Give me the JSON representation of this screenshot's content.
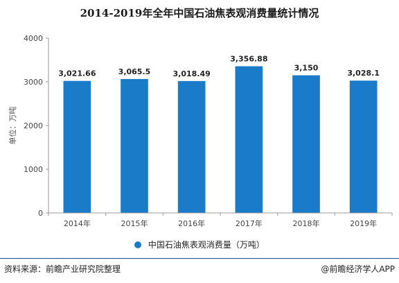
{
  "colors": {
    "bar": "#1a7cc9",
    "axis": "#999999",
    "grid": "#dddddd"
  },
  "chart_data": {
    "type": "bar",
    "title": "2014-2019年全年中国石油焦表观消费量统计情况",
    "categories": [
      "2014年",
      "2015年",
      "2016年",
      "2017年",
      "2018年",
      "2019年"
    ],
    "series": [
      {
        "name": "中国石油焦表观消费量（万吨）",
        "values": [
          3021.66,
          3065.5,
          3018.49,
          3356.88,
          3150,
          3028.1
        ]
      }
    ],
    "data_labels": [
      "3,021.66",
      "3,065.5",
      "3,018.49",
      "3,356.88",
      "3,150",
      "3,028.1"
    ],
    "ylabel": "单位：万吨",
    "ylim": [
      0,
      4000
    ],
    "yticks": [
      0,
      1000,
      2000,
      3000,
      4000
    ],
    "grid": false,
    "legend_position": "bottom"
  },
  "footer": {
    "source": "资料来源：前瞻产业研究院整理",
    "brand": "@前瞻经济学人APP"
  }
}
